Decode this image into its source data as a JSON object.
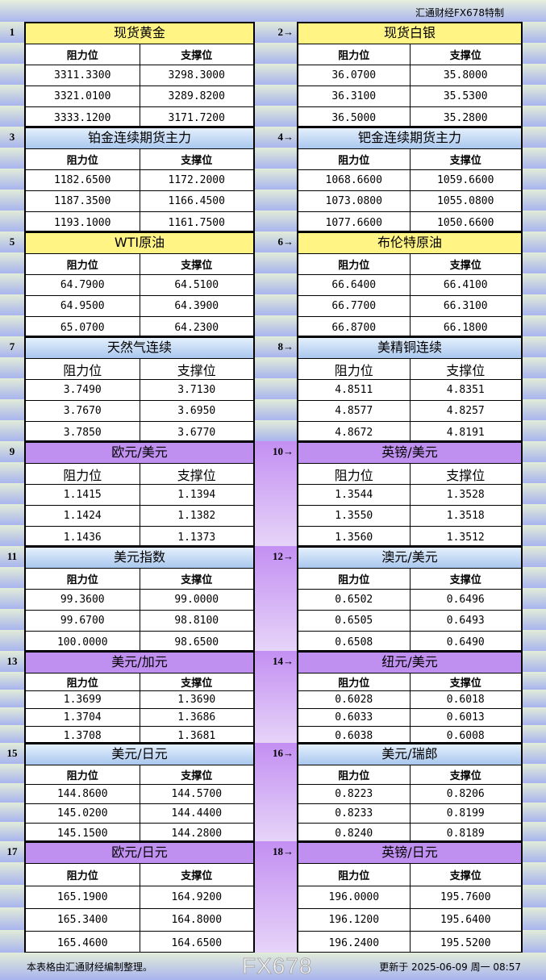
{
  "brand": "汇通财经FX678特制",
  "col_resistance": "阻力位",
  "col_support": "支撑位",
  "colors": {
    "yellow": "#fff484",
    "blue": "#c6dcf4",
    "purple": "#c090f0"
  },
  "pairs": [
    {
      "left": {
        "num": "1",
        "title": "现货黄金",
        "theme": "yellow",
        "rows": [
          [
            "3311.3300",
            "3298.3000"
          ],
          [
            "3321.0100",
            "3289.8200"
          ],
          [
            "3333.1200",
            "3171.7200"
          ]
        ]
      },
      "right": {
        "num": "2→",
        "title": "现货白银",
        "theme": "yellow",
        "rows": [
          [
            "36.0700",
            "35.8000"
          ],
          [
            "36.3100",
            "35.5300"
          ],
          [
            "36.5000",
            "35.2800"
          ]
        ]
      }
    },
    {
      "left": {
        "num": "3",
        "title": "铂金连续期货主力",
        "theme": "blue",
        "rows": [
          [
            "1182.6500",
            "1172.2000"
          ],
          [
            "1187.3500",
            "1166.4500"
          ],
          [
            "1193.1000",
            "1161.7500"
          ]
        ]
      },
      "right": {
        "num": "4→",
        "title": "钯金连续期货主力",
        "theme": "blue",
        "rows": [
          [
            "1068.6600",
            "1059.6600"
          ],
          [
            "1073.0800",
            "1055.0800"
          ],
          [
            "1077.6600",
            "1050.6600"
          ]
        ]
      }
    },
    {
      "left": {
        "num": "5",
        "title": "WTI原油",
        "theme": "yellow",
        "rows": [
          [
            "64.7900",
            "64.5100"
          ],
          [
            "64.9500",
            "64.3900"
          ],
          [
            "65.0700",
            "64.2300"
          ]
        ]
      },
      "right": {
        "num": "6→",
        "title": "布伦特原油",
        "theme": "yellow",
        "rows": [
          [
            "66.6400",
            "66.4100"
          ],
          [
            "66.7700",
            "66.3100"
          ],
          [
            "66.8700",
            "66.1800"
          ]
        ]
      }
    },
    {
      "left": {
        "num": "7",
        "title": "天然气连续",
        "theme": "blue",
        "rows": [
          [
            "3.7490",
            "3.7130"
          ],
          [
            "3.7670",
            "3.6950"
          ],
          [
            "3.7850",
            "3.6770"
          ]
        ]
      },
      "right": {
        "num": "8→",
        "title": "美精铜连续",
        "theme": "blue",
        "rows": [
          [
            "4.8511",
            "4.8351"
          ],
          [
            "4.8577",
            "4.8257"
          ],
          [
            "4.8672",
            "4.8191"
          ]
        ]
      }
    },
    {
      "left": {
        "num": "9",
        "title": "欧元/美元",
        "theme": "purple",
        "rows": [
          [
            "1.1415",
            "1.1394"
          ],
          [
            "1.1424",
            "1.1382"
          ],
          [
            "1.1436",
            "1.1373"
          ]
        ]
      },
      "right": {
        "num": "10→",
        "title": "英镑/美元",
        "theme": "purple",
        "rows": [
          [
            "1.3544",
            "1.3528"
          ],
          [
            "1.3550",
            "1.3518"
          ],
          [
            "1.3560",
            "1.3512"
          ]
        ]
      }
    },
    {
      "left": {
        "num": "11",
        "title": "美元指数",
        "theme": "blue",
        "rows": [
          [
            "99.3600",
            "99.0000"
          ],
          [
            "99.6700",
            "98.8100"
          ],
          [
            "100.0000",
            "98.6500"
          ]
        ]
      },
      "right": {
        "num": "12→",
        "title": "澳元/美元",
        "theme": "blue",
        "rows": [
          [
            "0.6502",
            "0.6496"
          ],
          [
            "0.6505",
            "0.6493"
          ],
          [
            "0.6508",
            "0.6490"
          ]
        ]
      }
    },
    {
      "left": {
        "num": "13",
        "title": "美元/加元",
        "theme": "purple",
        "rows": [
          [
            "1.3699",
            "1.3690"
          ],
          [
            "1.3704",
            "1.3686"
          ],
          [
            "1.3708",
            "1.3681"
          ]
        ]
      },
      "right": {
        "num": "14→",
        "title": "纽元/美元",
        "theme": "purple",
        "rows": [
          [
            "0.6028",
            "0.6018"
          ],
          [
            "0.6033",
            "0.6013"
          ],
          [
            "0.6038",
            "0.6008"
          ]
        ]
      }
    },
    {
      "left": {
        "num": "15",
        "title": "美元/日元",
        "theme": "blue",
        "rows": [
          [
            "144.8600",
            "144.5700"
          ],
          [
            "145.0200",
            "144.4400"
          ],
          [
            "145.1500",
            "144.2800"
          ]
        ]
      },
      "right": {
        "num": "16→",
        "title": "美元/瑞郎",
        "theme": "blue",
        "rows": [
          [
            "0.8223",
            "0.8206"
          ],
          [
            "0.8233",
            "0.8199"
          ],
          [
            "0.8240",
            "0.8189"
          ]
        ]
      }
    },
    {
      "left": {
        "num": "17",
        "title": "欧元/日元",
        "theme": "purple",
        "rows": [
          [
            "165.1900",
            "164.9200"
          ],
          [
            "165.3400",
            "164.8000"
          ],
          [
            "165.4600",
            "164.6500"
          ]
        ]
      },
      "right": {
        "num": "18→",
        "title": "英镑/日元",
        "theme": "purple",
        "rows": [
          [
            "196.0000",
            "195.7600"
          ],
          [
            "196.1200",
            "195.6400"
          ],
          [
            "196.2400",
            "195.5200"
          ]
        ]
      }
    }
  ],
  "footer": {
    "note": "本表格由汇通财经编制整理。",
    "updated": "更新于 2025-06-09 周一 08:57"
  },
  "watermark": "FX678"
}
